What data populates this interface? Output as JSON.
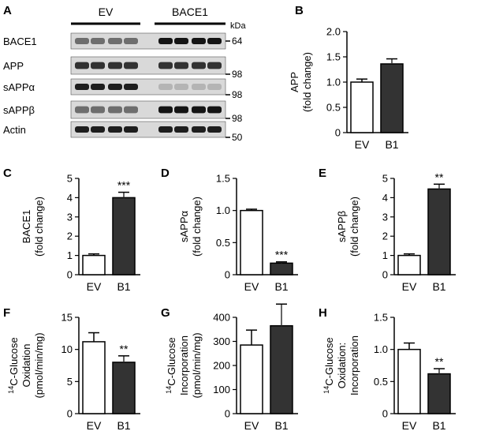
{
  "panels": [
    {
      "letter": "A",
      "kind": "blot"
    },
    {
      "letter": "B"
    },
    {
      "letter": "C"
    },
    {
      "letter": "D"
    },
    {
      "letter": "E"
    },
    {
      "letter": "F"
    },
    {
      "letter": "G"
    },
    {
      "letter": "H"
    }
  ],
  "blot": {
    "groups": [
      "EV",
      "BACE1"
    ],
    "rows": [
      "BACE1",
      "APP",
      "sAPPα",
      "sAPPβ",
      "Actin"
    ],
    "kda_title": "kDa",
    "markers": [
      "64",
      "98",
      "98",
      "98",
      "50"
    ],
    "band_intensity": {
      "EV": [
        0.55,
        0.85,
        0.95,
        0.55,
        0.95
      ],
      "BACE1": [
        1.0,
        0.85,
        0.2,
        1.0,
        0.95
      ]
    }
  },
  "chart_data": [
    {
      "panel": "B",
      "type": "bar",
      "categories": [
        "EV",
        "B1"
      ],
      "values": [
        1.0,
        1.36
      ],
      "errors": [
        0.06,
        0.1
      ],
      "ylabel": [
        "APP",
        "(fold change)"
      ],
      "ylim": [
        0,
        2.0
      ],
      "yticks": [
        "0",
        "0.5",
        "1.0",
        "1.5",
        "2.0"
      ],
      "significance": [
        "",
        ""
      ],
      "bar_fills": [
        "#ffffff",
        "#333333"
      ]
    },
    {
      "panel": "C",
      "type": "bar",
      "categories": [
        "EV",
        "B1"
      ],
      "values": [
        1.0,
        4.0
      ],
      "errors": [
        0.08,
        0.28
      ],
      "ylabel": [
        "BACE1",
        "(fold change)"
      ],
      "ylim": [
        0,
        5
      ],
      "yticks": [
        "0",
        "1",
        "2",
        "3",
        "4",
        "5"
      ],
      "significance": [
        "",
        "***"
      ],
      "bar_fills": [
        "#ffffff",
        "#333333"
      ]
    },
    {
      "panel": "D",
      "type": "bar",
      "categories": [
        "EV",
        "B1"
      ],
      "values": [
        1.0,
        0.18
      ],
      "errors": [
        0.02,
        0.02
      ],
      "ylabel": [
        "sAPPα",
        "(fold change)"
      ],
      "ylim": [
        0,
        1.5
      ],
      "yticks": [
        "0",
        "0.5",
        "1.0",
        "1.5"
      ],
      "significance": [
        "",
        "***"
      ],
      "bar_fills": [
        "#ffffff",
        "#333333"
      ]
    },
    {
      "panel": "E",
      "type": "bar",
      "categories": [
        "EV",
        "B1"
      ],
      "values": [
        1.0,
        4.45
      ],
      "errors": [
        0.08,
        0.25
      ],
      "ylabel": [
        "sAPPβ",
        "(fold change)"
      ],
      "ylim": [
        0,
        5
      ],
      "yticks": [
        "0",
        "1",
        "2",
        "3",
        "4",
        "5"
      ],
      "significance": [
        "",
        "**"
      ],
      "bar_fills": [
        "#ffffff",
        "#333333"
      ]
    },
    {
      "panel": "F",
      "type": "bar",
      "categories": [
        "EV",
        "B1"
      ],
      "values": [
        11.2,
        8.0
      ],
      "errors": [
        1.4,
        1.0
      ],
      "ylabel": [
        "14",
        "C-Glucose",
        "Oxidation",
        "(pmol/min/mg)"
      ],
      "ylim": [
        0,
        15
      ],
      "yticks": [
        "0",
        "5",
        "10",
        "15"
      ],
      "significance": [
        "",
        "**"
      ],
      "bar_fills": [
        "#ffffff",
        "#333333"
      ]
    },
    {
      "panel": "G",
      "type": "bar",
      "categories": [
        "EV",
        "B1"
      ],
      "values": [
        285,
        365
      ],
      "errors": [
        62,
        90
      ],
      "ylabel": [
        "14",
        "C-Glucose",
        "Incorporation",
        "(pmol/min/mg)"
      ],
      "ylim": [
        0,
        400
      ],
      "yticks": [
        "0",
        "100",
        "200",
        "300",
        "400"
      ],
      "significance": [
        "",
        ""
      ],
      "bar_fills": [
        "#ffffff",
        "#333333"
      ]
    },
    {
      "panel": "H",
      "type": "bar",
      "categories": [
        "EV",
        "B1"
      ],
      "values": [
        1.0,
        0.62
      ],
      "errors": [
        0.1,
        0.08
      ],
      "ylabel": [
        "14",
        "C-Glucose",
        "Oxidation:",
        "Incorporation"
      ],
      "ylim": [
        0,
        1.5
      ],
      "yticks": [
        "0",
        "0.5",
        "1.0",
        "1.5"
      ],
      "significance": [
        "",
        "**"
      ],
      "bar_fills": [
        "#ffffff",
        "#333333"
      ]
    }
  ]
}
